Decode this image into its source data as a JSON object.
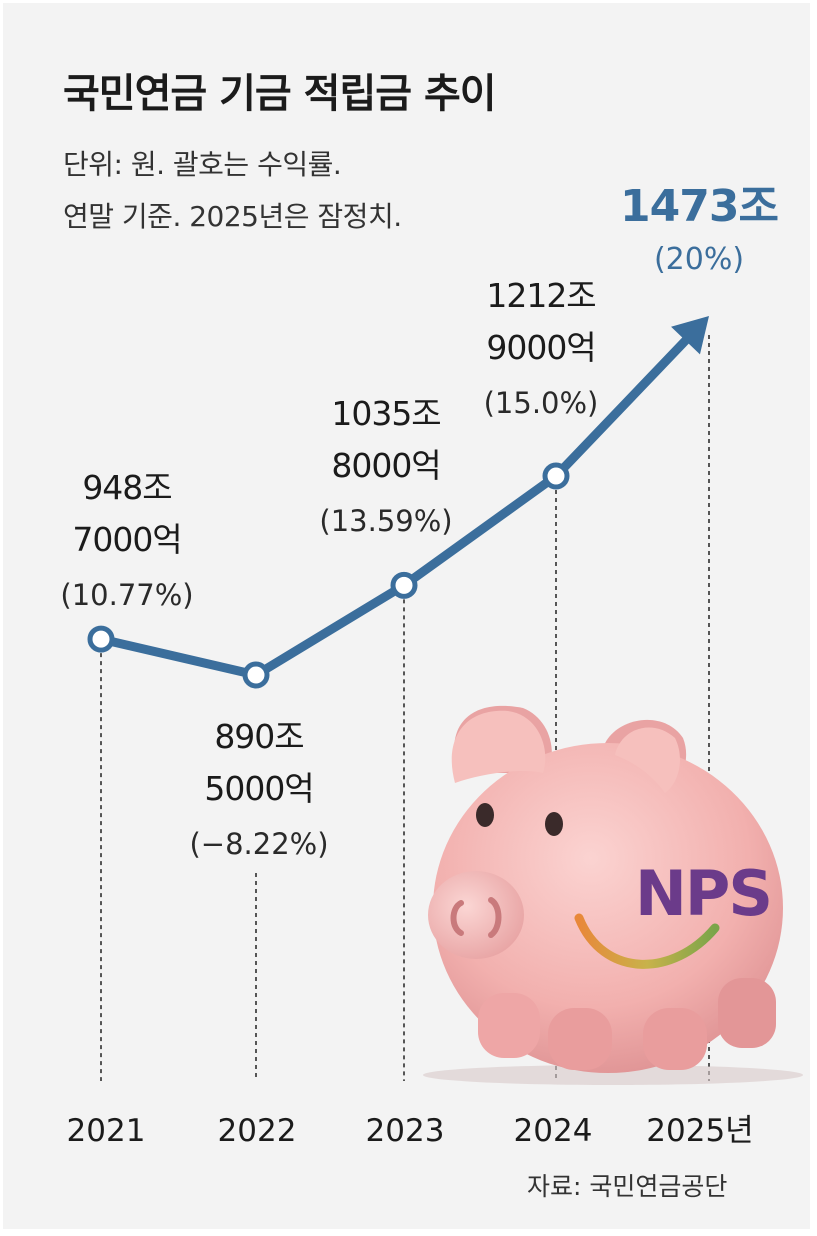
{
  "header": {
    "title": "국민연금 기금 적립금 추이",
    "subtitle_line1": "단위: 원. 괄호는 수익률.",
    "subtitle_line2": "연말 기준. 2025년은 잠정치."
  },
  "source": "자료: 국민연금공단",
  "logo_text": "NPS",
  "colors": {
    "line": "#3b6e9c",
    "highlight": "#3b6e9c",
    "pig": "#f0b2b2",
    "logo": "#6b3b8a"
  },
  "chart_data": {
    "type": "line",
    "title": "국민연금 기금 적립금 추이",
    "x": [
      "2021",
      "2022",
      "2023",
      "2024",
      "2025년"
    ],
    "values": [
      948.7,
      890.5,
      1035.8,
      1212.9,
      1473
    ],
    "unit": "조 원",
    "labels": [
      {
        "amount": [
          "948조",
          "7000억"
        ],
        "rate": "(10.77%)"
      },
      {
        "amount": [
          "890조",
          "5000억"
        ],
        "rate": "(−8.22%)"
      },
      {
        "amount": [
          "1035조",
          "8000억"
        ],
        "rate": "(13.59%)"
      },
      {
        "amount": [
          "1212조",
          "9000억"
        ],
        "rate": "(15.0%)"
      },
      {
        "amount": [
          "1473조"
        ],
        "rate": "(20%)"
      }
    ],
    "last_point_arrow": true,
    "grid": false
  }
}
